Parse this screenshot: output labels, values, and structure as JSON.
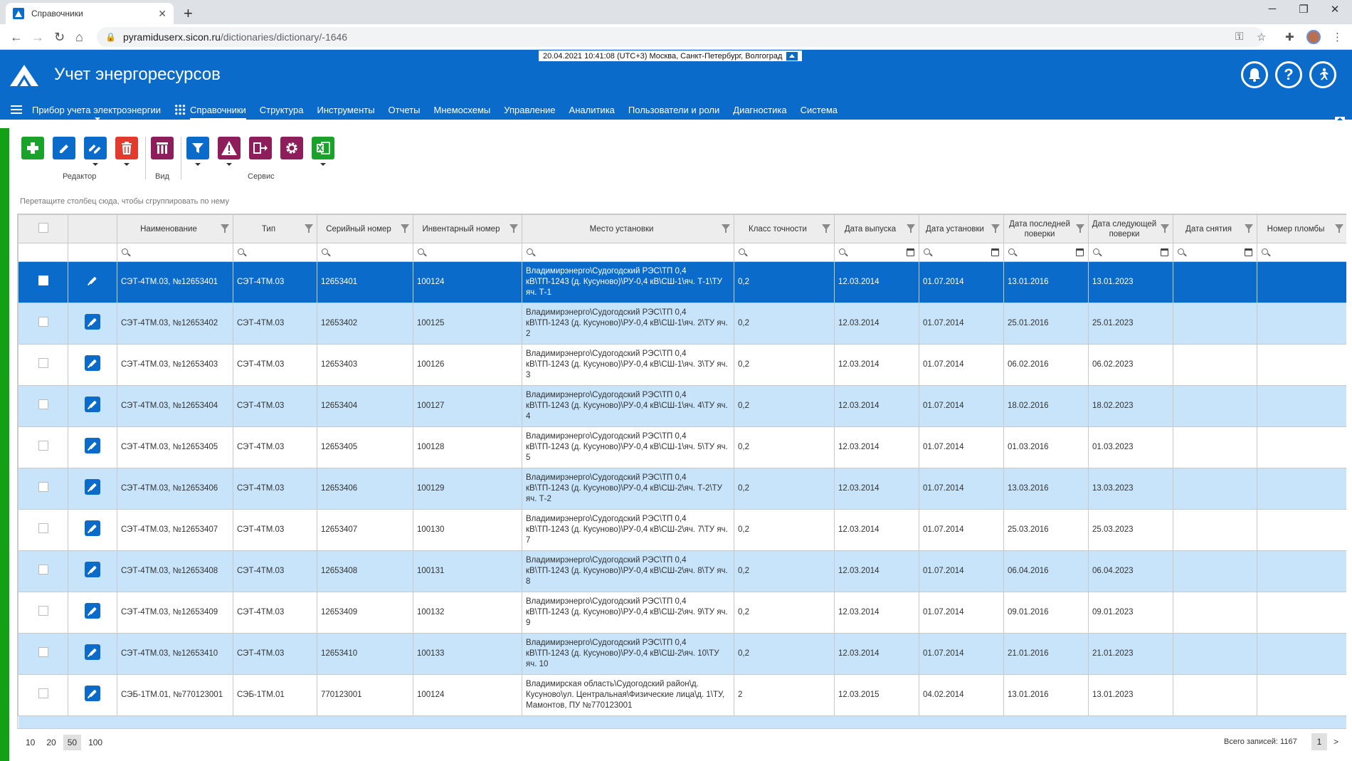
{
  "browser": {
    "tab_title": "Справочники",
    "tab_close": "✕",
    "new_tab": "+",
    "url_host": "pyramiduserx.sicon.ru",
    "url_path": "/dictionaries/dictionary/-1646",
    "min": "─",
    "max": "❐",
    "close": "✕"
  },
  "header": {
    "title": "Учет энергоресурсов",
    "datetime": "20.04.2021 10:41:08 (UTC+3) Москва, Санкт-Петербург, Волгоград",
    "bell": "🔔",
    "help": "?",
    "exit": "➔"
  },
  "menu": {
    "device": "Прибор учета электроэнергии",
    "items": [
      "Справочники",
      "Структура",
      "Инструменты",
      "Отчеты",
      "Мнемосхемы",
      "Управление",
      "Аналитика",
      "Пользователи и роли",
      "Диагностика",
      "Система"
    ]
  },
  "toolbar": {
    "editor_label": "Редактор",
    "view_label": "Вид",
    "service_label": "Сервис",
    "colors": {
      "add": "#1aa22b",
      "edit": "#0a6bcb",
      "delete": "#e23b2e",
      "view": "#8e1d5c",
      "filter": "#0a6bcb",
      "warn": "#8e1d5c",
      "move": "#8e1d5c",
      "settings": "#8e1d5c",
      "excel": "#1aa22b"
    }
  },
  "group_hint": "Перетащите столбец сюда, чтобы сгруппировать по нему",
  "columns": [
    "Наименование",
    "Тип",
    "Серийный номер",
    "Инвентарный номер",
    "Место установки",
    "Класс точности",
    "Дата выпуска",
    "Дата установки",
    "Дата последней поверки",
    "Дата следующей поверки",
    "Дата снятия",
    "Номер пломбы"
  ],
  "rows": [
    {
      "name": "СЭТ-4ТМ.03, №12653401",
      "type": "СЭТ-4ТМ.03",
      "serial": "12653401",
      "inv": "100124",
      "place": "Владимирэнерго\\Судогодский РЭС\\ТП 0,4 кВ\\ТП-1243 (д. Кусуново)\\РУ-0,4 кВ\\СШ-1\\яч. Т-1\\ТУ яч. Т-1",
      "cls": "0,2",
      "made": "12.03.2014",
      "installed": "01.07.2014",
      "last": "13.01.2016",
      "next": "13.01.2023",
      "removed": "",
      "seal": ""
    },
    {
      "name": "СЭТ-4ТМ.03, №12653402",
      "type": "СЭТ-4ТМ.03",
      "serial": "12653402",
      "inv": "100125",
      "place": "Владимирэнерго\\Судогодский РЭС\\ТП 0,4 кВ\\ТП-1243 (д. Кусуново)\\РУ-0,4 кВ\\СШ-1\\яч. 2\\ТУ яч. 2",
      "cls": "0,2",
      "made": "12.03.2014",
      "installed": "01.07.2014",
      "last": "25.01.2016",
      "next": "25.01.2023",
      "removed": "",
      "seal": ""
    },
    {
      "name": "СЭТ-4ТМ.03, №12653403",
      "type": "СЭТ-4ТМ.03",
      "serial": "12653403",
      "inv": "100126",
      "place": "Владимирэнерго\\Судогодский РЭС\\ТП 0,4 кВ\\ТП-1243 (д. Кусуново)\\РУ-0,4 кВ\\СШ-1\\яч. 3\\ТУ яч. 3",
      "cls": "0,2",
      "made": "12.03.2014",
      "installed": "01.07.2014",
      "last": "06.02.2016",
      "next": "06.02.2023",
      "removed": "",
      "seal": ""
    },
    {
      "name": "СЭТ-4ТМ.03, №12653404",
      "type": "СЭТ-4ТМ.03",
      "serial": "12653404",
      "inv": "100127",
      "place": "Владимирэнерго\\Судогодский РЭС\\ТП 0,4 кВ\\ТП-1243 (д. Кусуново)\\РУ-0,4 кВ\\СШ-1\\яч. 4\\ТУ яч. 4",
      "cls": "0,2",
      "made": "12.03.2014",
      "installed": "01.07.2014",
      "last": "18.02.2016",
      "next": "18.02.2023",
      "removed": "",
      "seal": ""
    },
    {
      "name": "СЭТ-4ТМ.03, №12653405",
      "type": "СЭТ-4ТМ.03",
      "serial": "12653405",
      "inv": "100128",
      "place": "Владимирэнерго\\Судогодский РЭС\\ТП 0,4 кВ\\ТП-1243 (д. Кусуново)\\РУ-0,4 кВ\\СШ-1\\яч. 5\\ТУ яч. 5",
      "cls": "0,2",
      "made": "12.03.2014",
      "installed": "01.07.2014",
      "last": "01.03.2016",
      "next": "01.03.2023",
      "removed": "",
      "seal": ""
    },
    {
      "name": "СЭТ-4ТМ.03, №12653406",
      "type": "СЭТ-4ТМ.03",
      "serial": "12653406",
      "inv": "100129",
      "place": "Владимирэнерго\\Судогодский РЭС\\ТП 0,4 кВ\\ТП-1243 (д. Кусуново)\\РУ-0,4 кВ\\СШ-2\\яч. Т-2\\ТУ яч. Т-2",
      "cls": "0,2",
      "made": "12.03.2014",
      "installed": "01.07.2014",
      "last": "13.03.2016",
      "next": "13.03.2023",
      "removed": "",
      "seal": ""
    },
    {
      "name": "СЭТ-4ТМ.03, №12653407",
      "type": "СЭТ-4ТМ.03",
      "serial": "12653407",
      "inv": "100130",
      "place": "Владимирэнерго\\Судогодский РЭС\\ТП 0,4 кВ\\ТП-1243 (д. Кусуново)\\РУ-0,4 кВ\\СШ-2\\яч. 7\\ТУ яч. 7",
      "cls": "0,2",
      "made": "12.03.2014",
      "installed": "01.07.2014",
      "last": "25.03.2016",
      "next": "25.03.2023",
      "removed": "",
      "seal": ""
    },
    {
      "name": "СЭТ-4ТМ.03, №12653408",
      "type": "СЭТ-4ТМ.03",
      "serial": "12653408",
      "inv": "100131",
      "place": "Владимирэнерго\\Судогодский РЭС\\ТП 0,4 кВ\\ТП-1243 (д. Кусуново)\\РУ-0,4 кВ\\СШ-2\\яч. 8\\ТУ яч. 8",
      "cls": "0,2",
      "made": "12.03.2014",
      "installed": "01.07.2014",
      "last": "06.04.2016",
      "next": "06.04.2023",
      "removed": "",
      "seal": ""
    },
    {
      "name": "СЭТ-4ТМ.03, №12653409",
      "type": "СЭТ-4ТМ.03",
      "serial": "12653409",
      "inv": "100132",
      "place": "Владимирэнерго\\Судогодский РЭС\\ТП 0,4 кВ\\ТП-1243 (д. Кусуново)\\РУ-0,4 кВ\\СШ-2\\яч. 9\\ТУ яч. 9",
      "cls": "0,2",
      "made": "12.03.2014",
      "installed": "01.07.2014",
      "last": "09.01.2016",
      "next": "09.01.2023",
      "removed": "",
      "seal": ""
    },
    {
      "name": "СЭТ-4ТМ.03, №12653410",
      "type": "СЭТ-4ТМ.03",
      "serial": "12653410",
      "inv": "100133",
      "place": "Владимирэнерго\\Судогодский РЭС\\ТП 0,4 кВ\\ТП-1243 (д. Кусуново)\\РУ-0,4 кВ\\СШ-2\\яч. 10\\ТУ яч. 10",
      "cls": "0,2",
      "made": "12.03.2014",
      "installed": "01.07.2014",
      "last": "21.01.2016",
      "next": "21.01.2023",
      "removed": "",
      "seal": ""
    },
    {
      "name": "СЭБ-1ТМ.01, №770123001",
      "type": "СЭБ-1ТМ.01",
      "serial": "770123001",
      "inv": "100124",
      "place": "Владимирская область\\Судогодский район\\д. Кусуново\\ул. Центральная\\Физические лица\\д. 1\\ТУ, Мамонтов, ПУ №770123001",
      "cls": "2",
      "made": "12.03.2015",
      "installed": "04.02.2014",
      "last": "13.01.2016",
      "next": "13.01.2023",
      "removed": "",
      "seal": ""
    }
  ],
  "footer": {
    "page_sizes": [
      "10",
      "20",
      "50",
      "100"
    ],
    "active_size": "50",
    "total": "Всего записей: 1167",
    "page": "1",
    "next": ">"
  }
}
